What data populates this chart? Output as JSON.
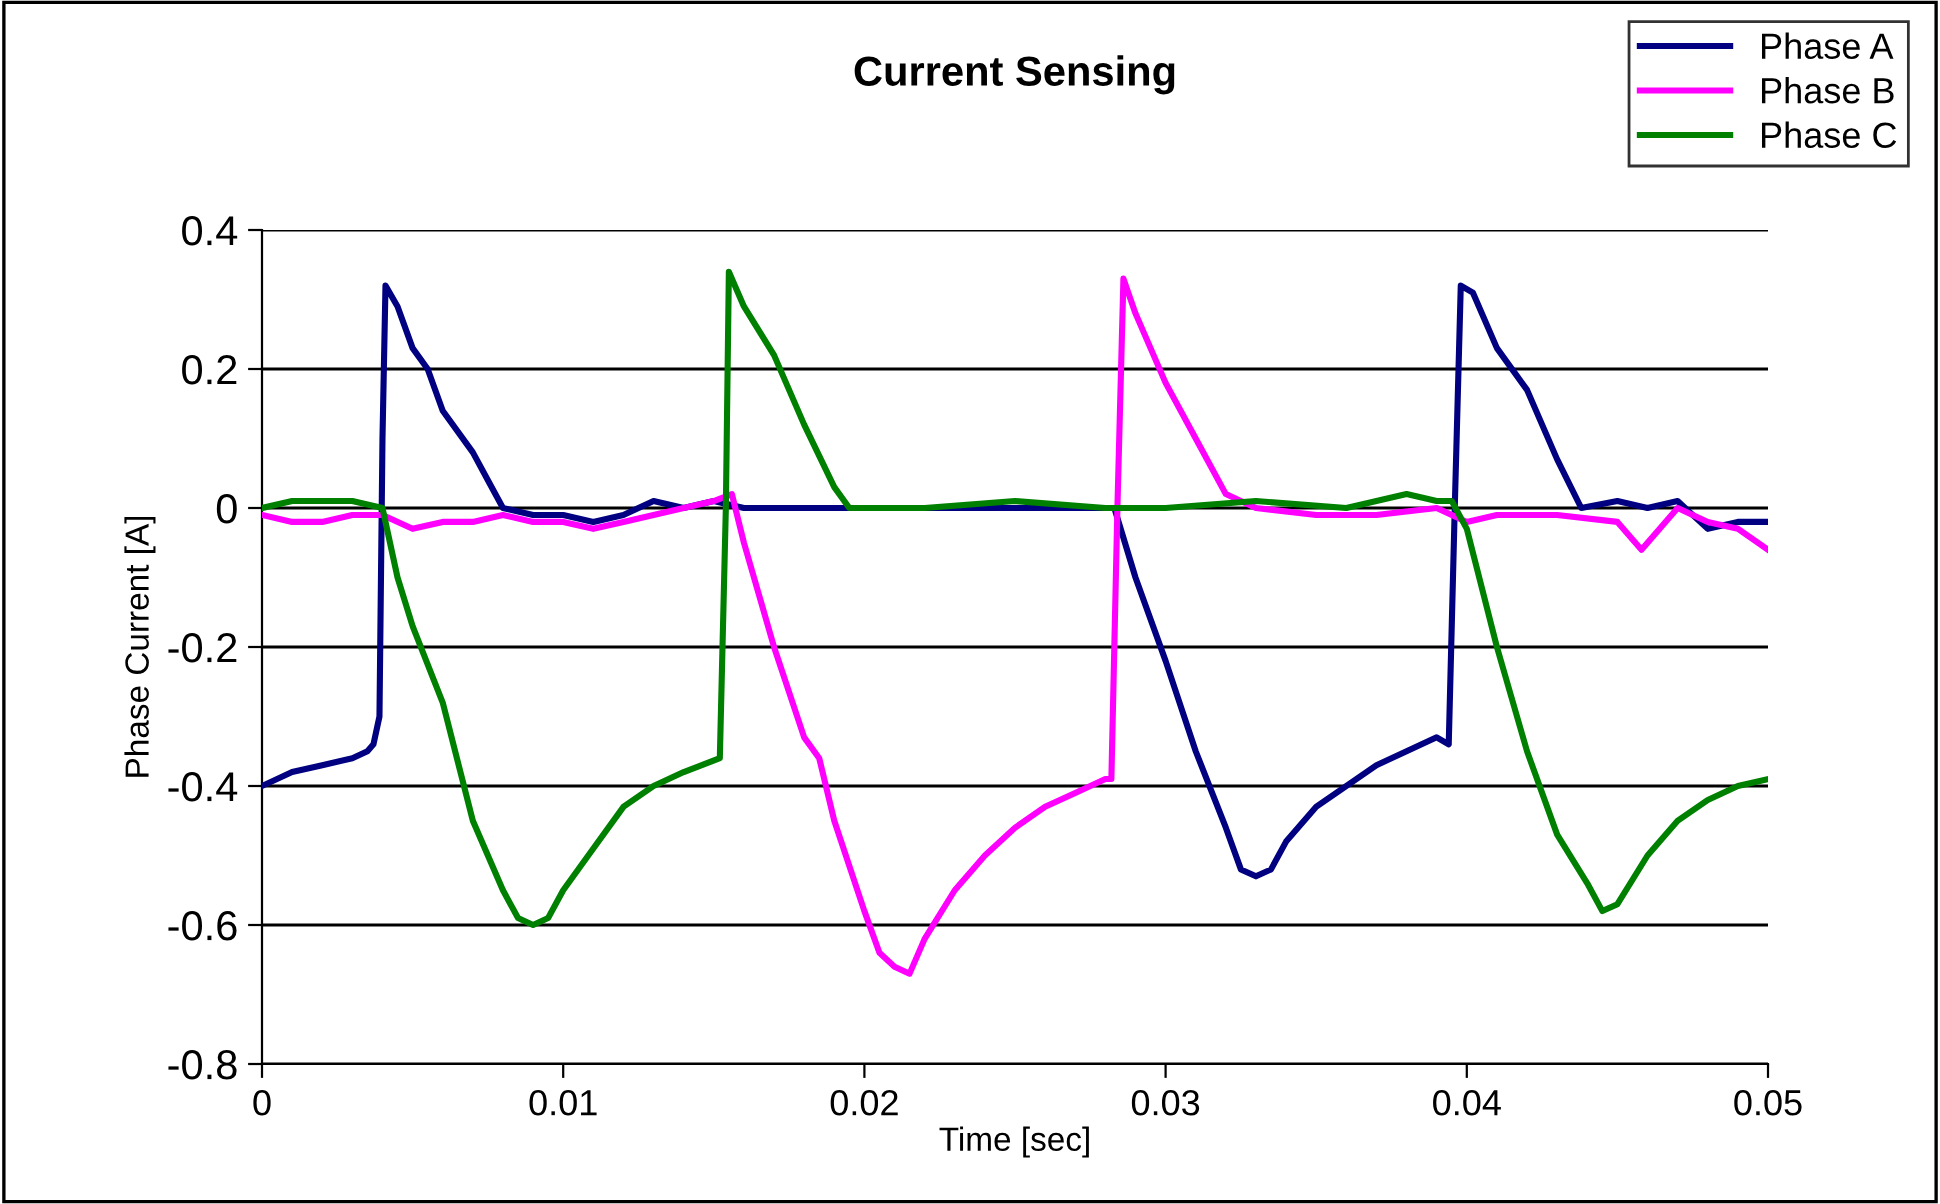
{
  "chart_data": {
    "type": "line",
    "title": "Current Sensing",
    "xlabel": "Time [sec]",
    "ylabel": "Phase Current [A]",
    "xlim": [
      0,
      0.05
    ],
    "xticks": [
      0,
      0.01,
      0.02,
      0.03,
      0.04,
      0.05
    ],
    "ylim": [
      -0.8,
      0.4
    ],
    "yticks": [
      -0.8,
      -0.6,
      -0.4,
      -0.2,
      0,
      0.2,
      0.4
    ],
    "grid": "y",
    "legend": "top right",
    "marker": "none",
    "line_style": "solid",
    "series": [
      {
        "name": "Phase A",
        "color": "#000080",
        "x": [
          0,
          0.001,
          0.002,
          0.003,
          0.0035,
          0.0037,
          0.0039,
          0.004,
          0.0041,
          0.0045,
          0.005,
          0.0055,
          0.006,
          0.007,
          0.0075,
          0.008,
          0.009,
          0.01,
          0.011,
          0.012,
          0.013,
          0.014,
          0.015,
          0.016,
          0.018,
          0.02,
          0.022,
          0.025,
          0.028,
          0.0283,
          0.029,
          0.03,
          0.031,
          0.032,
          0.0325,
          0.033,
          0.0335,
          0.034,
          0.035,
          0.036,
          0.037,
          0.038,
          0.039,
          0.0394,
          0.0396,
          0.0398,
          0.0402,
          0.041,
          0.042,
          0.043,
          0.0438,
          0.045,
          0.046,
          0.047,
          0.048,
          0.049,
          0.05
        ],
        "values": [
          -0.4,
          -0.38,
          -0.37,
          -0.36,
          -0.35,
          -0.34,
          -0.3,
          0.1,
          0.32,
          0.29,
          0.23,
          0.2,
          0.14,
          0.08,
          0.04,
          0.0,
          -0.01,
          -0.01,
          -0.02,
          -0.01,
          0.01,
          0.0,
          0.01,
          0.0,
          0.0,
          0.0,
          0.0,
          0.0,
          0.0,
          0.0,
          -0.1,
          -0.22,
          -0.35,
          -0.46,
          -0.52,
          -0.53,
          -0.52,
          -0.48,
          -0.43,
          -0.4,
          -0.37,
          -0.35,
          -0.33,
          -0.34,
          0.0,
          0.32,
          0.31,
          0.23,
          0.17,
          0.07,
          0.0,
          0.01,
          0.0,
          0.01,
          -0.03,
          -0.02,
          -0.02
        ]
      },
      {
        "name": "Phase B",
        "color": "#ff00ff",
        "x": [
          0,
          0.001,
          0.002,
          0.003,
          0.004,
          0.005,
          0.006,
          0.007,
          0.008,
          0.009,
          0.01,
          0.011,
          0.012,
          0.013,
          0.014,
          0.015,
          0.0156,
          0.016,
          0.017,
          0.018,
          0.0185,
          0.019,
          0.02,
          0.0205,
          0.021,
          0.0215,
          0.022,
          0.023,
          0.024,
          0.025,
          0.026,
          0.027,
          0.028,
          0.0282,
          0.0284,
          0.0286,
          0.029,
          0.03,
          0.031,
          0.032,
          0.033,
          0.035,
          0.037,
          0.039,
          0.04,
          0.041,
          0.043,
          0.045,
          0.0458,
          0.047,
          0.048,
          0.049,
          0.05
        ],
        "values": [
          -0.01,
          -0.02,
          -0.02,
          -0.01,
          -0.01,
          -0.03,
          -0.02,
          -0.02,
          -0.01,
          -0.02,
          -0.02,
          -0.03,
          -0.02,
          -0.01,
          0.0,
          0.01,
          0.02,
          -0.05,
          -0.2,
          -0.33,
          -0.36,
          -0.45,
          -0.58,
          -0.64,
          -0.66,
          -0.67,
          -0.62,
          -0.55,
          -0.5,
          -0.46,
          -0.43,
          -0.41,
          -0.39,
          -0.39,
          0.0,
          0.33,
          0.28,
          0.18,
          0.1,
          0.02,
          0.0,
          -0.01,
          -0.01,
          0.0,
          -0.02,
          -0.01,
          -0.01,
          -0.02,
          -0.06,
          0.0,
          -0.02,
          -0.03,
          -0.06
        ]
      },
      {
        "name": "Phase C",
        "color": "#008000",
        "x": [
          0,
          0.001,
          0.002,
          0.003,
          0.004,
          0.0045,
          0.005,
          0.006,
          0.007,
          0.008,
          0.0085,
          0.009,
          0.0095,
          0.01,
          0.011,
          0.012,
          0.013,
          0.014,
          0.0152,
          0.0154,
          0.0155,
          0.016,
          0.017,
          0.018,
          0.019,
          0.0195,
          0.022,
          0.025,
          0.028,
          0.03,
          0.033,
          0.036,
          0.038,
          0.039,
          0.0395,
          0.04,
          0.041,
          0.042,
          0.043,
          0.044,
          0.0445,
          0.045,
          0.046,
          0.047,
          0.048,
          0.049,
          0.05
        ],
        "values": [
          0.0,
          0.01,
          0.01,
          0.01,
          0.0,
          -0.1,
          -0.17,
          -0.28,
          -0.45,
          -0.55,
          -0.59,
          -0.6,
          -0.59,
          -0.55,
          -0.49,
          -0.43,
          -0.4,
          -0.38,
          -0.36,
          0.0,
          0.34,
          0.29,
          0.22,
          0.12,
          0.03,
          0.0,
          0.0,
          0.01,
          0.0,
          0.0,
          0.01,
          0.0,
          0.02,
          0.01,
          0.01,
          -0.03,
          -0.2,
          -0.35,
          -0.47,
          -0.54,
          -0.58,
          -0.57,
          -0.5,
          -0.45,
          -0.42,
          -0.4,
          -0.39
        ]
      }
    ]
  }
}
